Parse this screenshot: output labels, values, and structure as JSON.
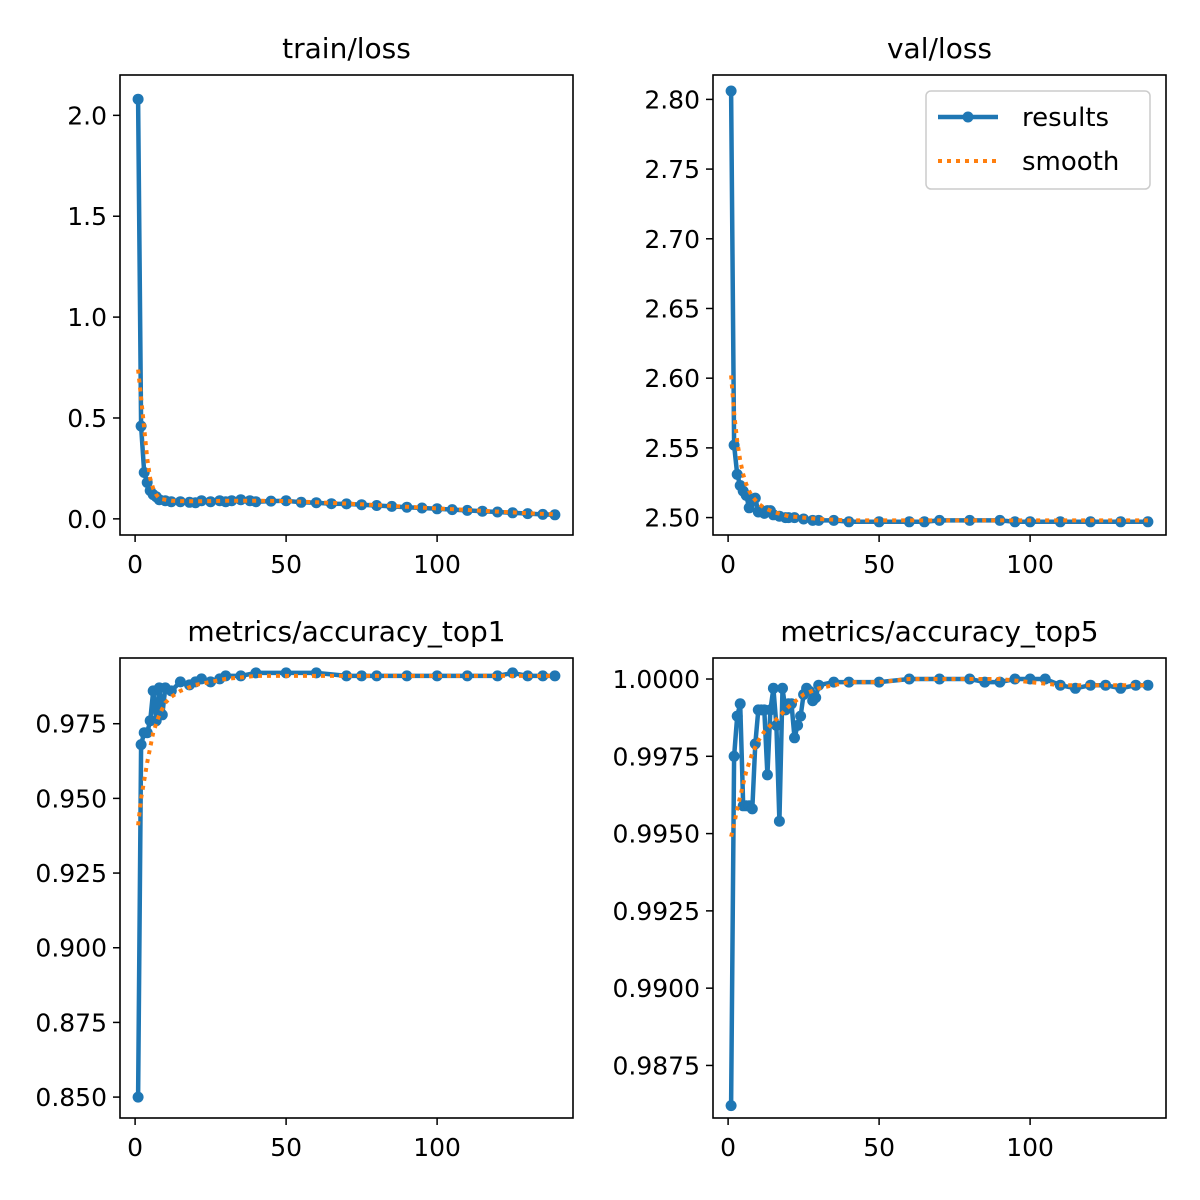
{
  "colors": {
    "results": "#1f77b4",
    "smooth": "#ff7f0e"
  },
  "legend_items": [
    "results",
    "smooth"
  ],
  "chart_data": [
    {
      "type": "line",
      "title": "train/loss",
      "xlim": [
        -5,
        145
      ],
      "ylim": [
        -0.08,
        2.2
      ],
      "xticks": [
        0,
        50,
        100
      ],
      "yticks": [
        0.0,
        0.5,
        1.0,
        1.5,
        2.0
      ],
      "ytick_labels": [
        "0.0",
        "0.5",
        "1.0",
        "1.5",
        "2.0"
      ],
      "legend": "",
      "series": [
        {
          "name": "results",
          "x": [
            1,
            2,
            3,
            4,
            5,
            6,
            7,
            8,
            10,
            12,
            15,
            18,
            20,
            22,
            25,
            28,
            30,
            32,
            35,
            38,
            40,
            45,
            50,
            55,
            60,
            65,
            70,
            75,
            80,
            85,
            90,
            95,
            100,
            105,
            110,
            115,
            120,
            125,
            130,
            135,
            139
          ],
          "y": [
            2.08,
            0.46,
            0.23,
            0.18,
            0.14,
            0.12,
            0.11,
            0.095,
            0.09,
            0.085,
            0.085,
            0.082,
            0.08,
            0.09,
            0.085,
            0.09,
            0.085,
            0.09,
            0.095,
            0.09,
            0.085,
            0.088,
            0.09,
            0.082,
            0.08,
            0.075,
            0.074,
            0.07,
            0.066,
            0.062,
            0.058,
            0.054,
            0.05,
            0.046,
            0.042,
            0.038,
            0.034,
            0.03,
            0.026,
            0.022,
            0.02
          ]
        },
        {
          "name": "smooth",
          "x": [
            1,
            2,
            3,
            4,
            5,
            6,
            7,
            8,
            10,
            12,
            15,
            20,
            25,
            30,
            40,
            50,
            60,
            70,
            80,
            90,
            100,
            110,
            120,
            130,
            139
          ],
          "y": [
            0.74,
            0.6,
            0.45,
            0.3,
            0.2,
            0.15,
            0.12,
            0.1,
            0.095,
            0.09,
            0.088,
            0.087,
            0.088,
            0.09,
            0.09,
            0.088,
            0.082,
            0.076,
            0.068,
            0.06,
            0.052,
            0.044,
            0.036,
            0.028,
            0.022
          ]
        }
      ]
    },
    {
      "type": "line",
      "title": "val/loss",
      "xlim": [
        -5,
        145
      ],
      "ylim": [
        2.4875,
        2.8175
      ],
      "xticks": [
        0,
        50,
        100
      ],
      "yticks": [
        2.5,
        2.55,
        2.6,
        2.65,
        2.7,
        2.75,
        2.8
      ],
      "ytick_labels": [
        "2.50",
        "2.55",
        "2.60",
        "2.65",
        "2.70",
        "2.75",
        "2.80"
      ],
      "legend": "top-right",
      "series": [
        {
          "name": "results",
          "x": [
            1,
            2,
            3,
            4,
            5,
            6,
            7,
            8,
            9,
            10,
            11,
            12,
            13,
            14,
            15,
            17,
            19,
            20,
            22,
            25,
            28,
            30,
            35,
            40,
            50,
            60,
            65,
            70,
            80,
            90,
            95,
            100,
            110,
            120,
            130,
            139
          ],
          "y": [
            2.806,
            2.552,
            2.531,
            2.523,
            2.519,
            2.516,
            2.507,
            2.512,
            2.514,
            2.504,
            2.505,
            2.503,
            2.505,
            2.505,
            2.502,
            2.501,
            2.5,
            2.5,
            2.5,
            2.499,
            2.498,
            2.498,
            2.498,
            2.497,
            2.497,
            2.497,
            2.497,
            2.498,
            2.498,
            2.498,
            2.497,
            2.497,
            2.497,
            2.497,
            2.497,
            2.497
          ]
        },
        {
          "name": "smooth",
          "x": [
            1,
            2,
            3,
            4,
            5,
            6,
            7,
            8,
            10,
            12,
            15,
            20,
            25,
            30,
            40,
            50,
            60,
            70,
            80,
            90,
            100,
            110,
            120,
            130,
            139
          ],
          "y": [
            2.602,
            2.575,
            2.555,
            2.541,
            2.531,
            2.524,
            2.519,
            2.515,
            2.51,
            2.507,
            2.504,
            2.501,
            2.5,
            2.499,
            2.498,
            2.498,
            2.498,
            2.498,
            2.498,
            2.498,
            2.498,
            2.498,
            2.498,
            2.498,
            2.498
          ]
        }
      ]
    },
    {
      "type": "line",
      "title": "metrics/accuracy_top1",
      "xlim": [
        -5,
        145
      ],
      "ylim": [
        0.843,
        0.997
      ],
      "xticks": [
        0,
        50,
        100
      ],
      "yticks": [
        0.85,
        0.875,
        0.9,
        0.925,
        0.95,
        0.975
      ],
      "ytick_labels": [
        "0.850",
        "0.875",
        "0.900",
        "0.925",
        "0.950",
        "0.975"
      ],
      "legend": "",
      "series": [
        {
          "name": "results",
          "x": [
            1,
            2,
            3,
            4,
            5,
            6,
            7,
            8,
            9,
            10,
            12,
            15,
            18,
            20,
            22,
            25,
            28,
            30,
            35,
            40,
            50,
            60,
            70,
            75,
            80,
            90,
            100,
            110,
            120,
            125,
            130,
            135,
            139
          ],
          "y": [
            0.85,
            0.968,
            0.972,
            0.972,
            0.976,
            0.986,
            0.976,
            0.987,
            0.978,
            0.987,
            0.986,
            0.989,
            0.988,
            0.989,
            0.99,
            0.989,
            0.99,
            0.991,
            0.991,
            0.992,
            0.992,
            0.992,
            0.991,
            0.991,
            0.991,
            0.991,
            0.991,
            0.991,
            0.991,
            0.992,
            0.991,
            0.991,
            0.991
          ]
        },
        {
          "name": "smooth",
          "x": [
            1,
            2,
            3,
            4,
            5,
            6,
            7,
            8,
            10,
            12,
            15,
            20,
            25,
            30,
            40,
            50,
            60,
            70,
            80,
            90,
            100,
            110,
            120,
            130,
            139
          ],
          "y": [
            0.941,
            0.95,
            0.956,
            0.962,
            0.967,
            0.972,
            0.975,
            0.978,
            0.982,
            0.984,
            0.986,
            0.988,
            0.989,
            0.99,
            0.991,
            0.991,
            0.991,
            0.991,
            0.991,
            0.991,
            0.991,
            0.991,
            0.991,
            0.991,
            0.991
          ]
        }
      ]
    },
    {
      "type": "line",
      "title": "metrics/accuracy_top5",
      "xlim": [
        -5,
        145
      ],
      "ylim": [
        0.9858,
        1.00068
      ],
      "xticks": [
        0,
        50,
        100
      ],
      "yticks": [
        0.9875,
        0.99,
        0.9925,
        0.995,
        0.9975,
        1.0
      ],
      "ytick_labels": [
        "0.9875",
        "0.9900",
        "0.9925",
        "0.9950",
        "0.9975",
        "1.0000"
      ],
      "legend": "",
      "series": [
        {
          "name": "results",
          "x": [
            1,
            2,
            3,
            4,
            5,
            6,
            7,
            8,
            9,
            10,
            11,
            12,
            13,
            14,
            15,
            16,
            17,
            18,
            19,
            20,
            21,
            22,
            23,
            24,
            25,
            26,
            27,
            28,
            29,
            30,
            35,
            40,
            50,
            60,
            70,
            80,
            85,
            90,
            95,
            100,
            105,
            110,
            115,
            120,
            125,
            130,
            135,
            139
          ],
          "y": [
            0.9862,
            0.9975,
            0.9988,
            0.9992,
            0.9959,
            0.9959,
            0.9959,
            0.9958,
            0.9979,
            0.999,
            0.999,
            0.999,
            0.9969,
            0.999,
            0.9997,
            0.9985,
            0.9954,
            0.9997,
            0.999,
            0.9992,
            0.9992,
            0.9981,
            0.9985,
            0.9988,
            0.9995,
            0.9997,
            0.9996,
            0.9993,
            0.9994,
            0.9998,
            0.9999,
            0.9999,
            0.9999,
            1.0,
            1.0,
            1.0,
            0.9999,
            0.9999,
            1.0,
            1.0,
            1.0,
            0.9998,
            0.9997,
            0.9998,
            0.9998,
            0.9997,
            0.9998,
            0.9998
          ]
        },
        {
          "name": "smooth",
          "x": [
            1,
            2,
            3,
            4,
            5,
            6,
            7,
            8,
            10,
            12,
            15,
            18,
            20,
            25,
            30,
            40,
            50,
            60,
            70,
            80,
            90,
            100,
            110,
            120,
            130,
            139
          ],
          "y": [
            0.9949,
            0.9953,
            0.9958,
            0.9962,
            0.9966,
            0.997,
            0.9973,
            0.9976,
            0.998,
            0.9983,
            0.9986,
            0.9989,
            0.9991,
            0.9995,
            0.9997,
            0.9999,
            0.9999,
            1.0,
            1.0,
            1.0,
            1.0,
            0.9999,
            0.9998,
            0.9998,
            0.9998,
            0.9998
          ]
        }
      ]
    }
  ]
}
